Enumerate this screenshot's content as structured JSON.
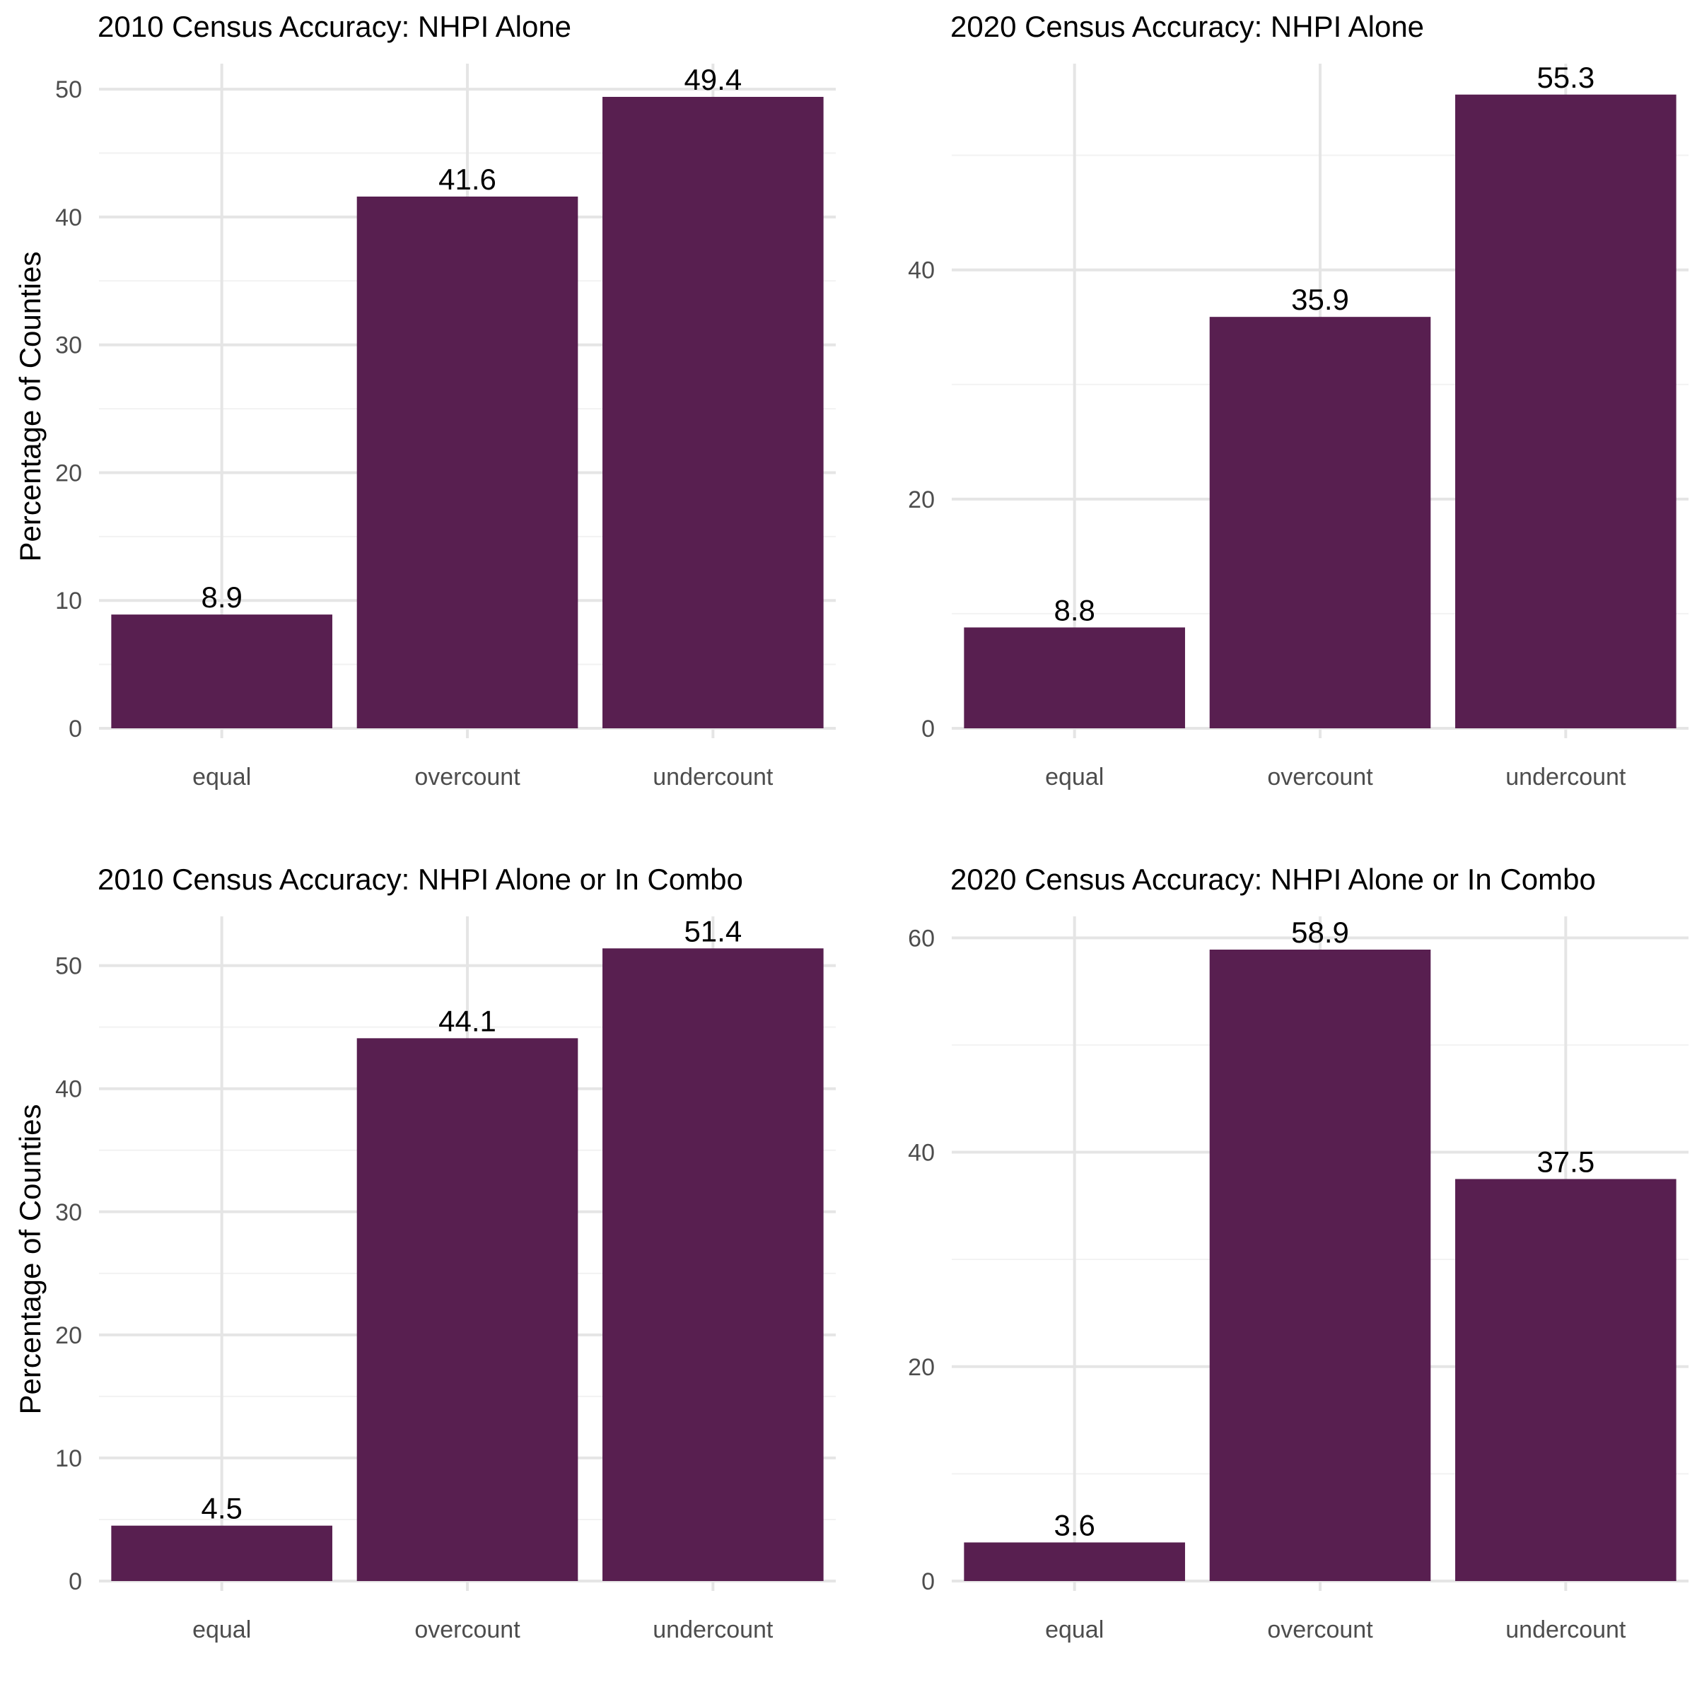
{
  "figure": {
    "bar_color": "#581f50",
    "grid_major_color": "#e5e5e5",
    "grid_minor_color": "#f2f2f2",
    "background": "#ffffff"
  },
  "chart_data": [
    {
      "type": "bar",
      "title": "2010 Census Accuracy: NHPI Alone",
      "xlabel": "",
      "ylabel": "Percentage of Counties",
      "categories": [
        "equal",
        "overcount",
        "undercount"
      ],
      "values": [
        8.9,
        41.6,
        49.4
      ],
      "data_labels": [
        "8.9",
        "41.6",
        "49.4"
      ],
      "ylim": [
        0,
        52
      ],
      "yticks": [
        0,
        10,
        20,
        30,
        40,
        50
      ],
      "minor_yticks": [
        5,
        15,
        25,
        35,
        45
      ],
      "grid": true,
      "legend": "none"
    },
    {
      "type": "bar",
      "title": "2020 Census Accuracy: NHPI Alone",
      "xlabel": "",
      "ylabel": "",
      "categories": [
        "equal",
        "overcount",
        "undercount"
      ],
      "values": [
        8.8,
        35.9,
        55.3
      ],
      "data_labels": [
        "8.8",
        "35.9",
        "55.3"
      ],
      "ylim": [
        0,
        58
      ],
      "yticks": [
        0,
        20,
        40
      ],
      "minor_yticks": [
        10,
        30,
        50
      ],
      "grid": true,
      "legend": "none"
    },
    {
      "type": "bar",
      "title": "2010 Census Accuracy: NHPI Alone or In Combo",
      "xlabel": "",
      "ylabel": "Percentage of Counties",
      "categories": [
        "equal",
        "overcount",
        "undercount"
      ],
      "values": [
        4.5,
        44.1,
        51.4
      ],
      "data_labels": [
        "4.5",
        "44.1",
        "51.4"
      ],
      "ylim": [
        0,
        54
      ],
      "yticks": [
        0,
        10,
        20,
        30,
        40,
        50
      ],
      "minor_yticks": [
        5,
        15,
        25,
        35,
        45
      ],
      "grid": true,
      "legend": "none"
    },
    {
      "type": "bar",
      "title": "2020 Census Accuracy: NHPI Alone or In Combo",
      "xlabel": "",
      "ylabel": "",
      "categories": [
        "equal",
        "overcount",
        "undercount"
      ],
      "values": [
        3.6,
        58.9,
        37.5
      ],
      "data_labels": [
        "3.6",
        "58.9",
        "37.5"
      ],
      "ylim": [
        0,
        62
      ],
      "yticks": [
        0,
        20,
        40,
        60
      ],
      "minor_yticks": [
        10,
        30,
        50
      ],
      "grid": true,
      "legend": "none"
    }
  ]
}
